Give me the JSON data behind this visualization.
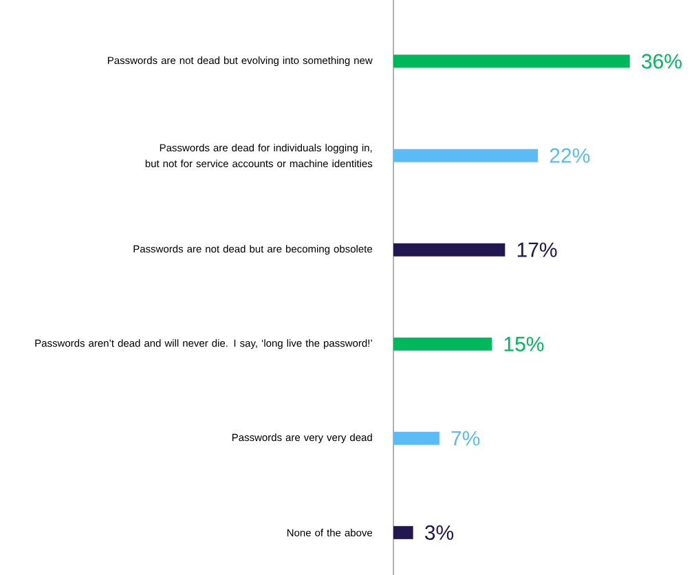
{
  "chart_data": {
    "type": "bar",
    "orientation": "horizontal",
    "categories": [
      "Passwords are not dead but evolving into something new",
      "Passwords are dead for individuals logging in, but not for service accounts or machine identities",
      "Passwords are not dead but are becoming obsolete",
      "Passwords aren’t dead and will never die. I say, ‘long live the password!’",
      "Passwords are very very dead",
      "None of the above"
    ],
    "values": [
      36,
      22,
      17,
      15,
      7,
      3
    ],
    "colors": [
      "#00b85c",
      "#5bbcf5",
      "#22174f",
      "#00b85c",
      "#5bbcf5",
      "#22174f"
    ],
    "value_labels": [
      "36%",
      "22%",
      "17%",
      "15%",
      "7%",
      "3%"
    ]
  }
}
